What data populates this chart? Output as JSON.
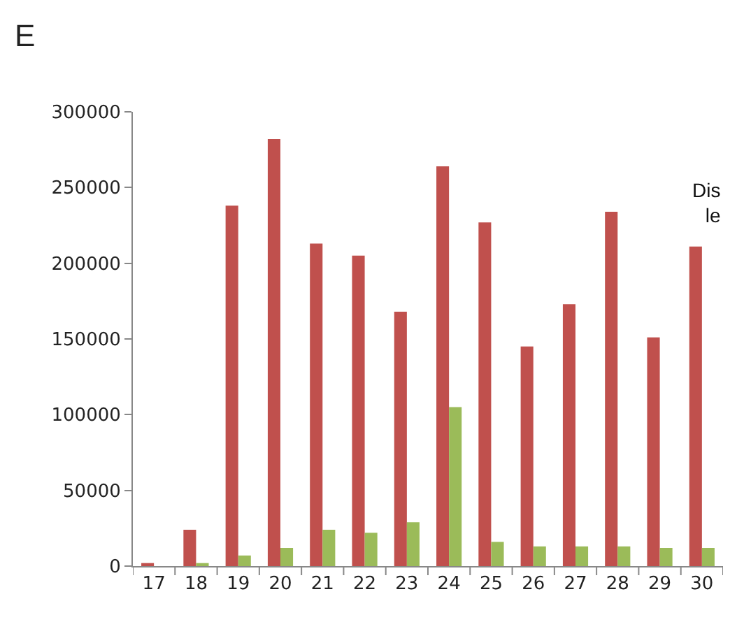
{
  "chart_data": {
    "type": "bar",
    "title": "E",
    "categories": [
      "17",
      "18",
      "19",
      "20",
      "21",
      "22",
      "23",
      "24",
      "25",
      "26",
      "27",
      "28",
      "29",
      "30"
    ],
    "series": [
      {
        "color": "#c0504d",
        "values": [
          2000,
          24000,
          238000,
          282000,
          213000,
          205000,
          168000,
          264000,
          227000,
          145000,
          173000,
          234000,
          151000,
          211000
        ]
      },
      {
        "color": "#9bbb59",
        "values": [
          0,
          2000,
          7000,
          12000,
          24000,
          22000,
          29000,
          105000,
          16000,
          13000,
          13000,
          13000,
          12000,
          12000
        ]
      }
    ],
    "ylim": [
      0,
      300000
    ],
    "yticks": [
      0,
      50000,
      100000,
      150000,
      200000,
      250000,
      300000
    ],
    "annotations": [
      "Dis\nle"
    ]
  }
}
